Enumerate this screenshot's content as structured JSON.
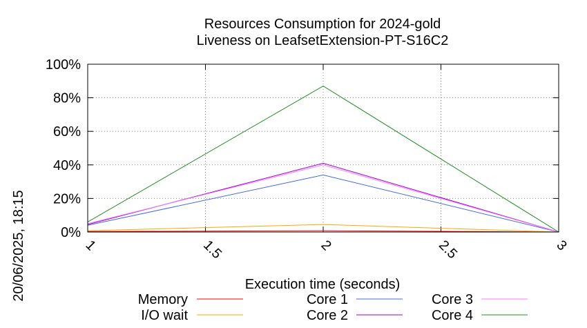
{
  "chart_data": {
    "type": "line",
    "title": "Resources Consumption for 2024-gold",
    "subtitle": "Liveness on LeafsetExtension-PT-S16C2",
    "xlabel": "Execution time (seconds)",
    "ylabel": "",
    "side_label": "20/06/2025, 18:15",
    "xlim": [
      1,
      3
    ],
    "ylim": [
      0,
      100
    ],
    "x_ticks": [
      1,
      1.5,
      2,
      2.5,
      3
    ],
    "x_tick_labels": [
      "1",
      "1.5",
      "2",
      "2.5",
      "3"
    ],
    "y_ticks": [
      0,
      20,
      40,
      60,
      80,
      100
    ],
    "y_tick_labels": [
      "0%",
      "20%",
      "40%",
      "60%",
      "80%",
      "100%"
    ],
    "grid": true,
    "legend_position": "bottom",
    "x": [
      1,
      2,
      3
    ],
    "series": [
      {
        "name": "Memory",
        "color": "#ff0000",
        "values": [
          0.3,
          0.8,
          0
        ]
      },
      {
        "name": "I/O wait",
        "color": "#ffa500",
        "values": [
          0.8,
          4.5,
          0
        ]
      },
      {
        "name": "Core 1",
        "color": "#4169e1",
        "values": [
          4,
          34,
          0
        ]
      },
      {
        "name": "Core 2",
        "color": "#9400d3",
        "values": [
          4.5,
          41,
          0
        ]
      },
      {
        "name": "Core 3",
        "color": "#ff77ff",
        "values": [
          5,
          40,
          0
        ]
      },
      {
        "name": "Core 4",
        "color": "#228b22",
        "values": [
          6,
          87,
          0
        ]
      }
    ]
  }
}
